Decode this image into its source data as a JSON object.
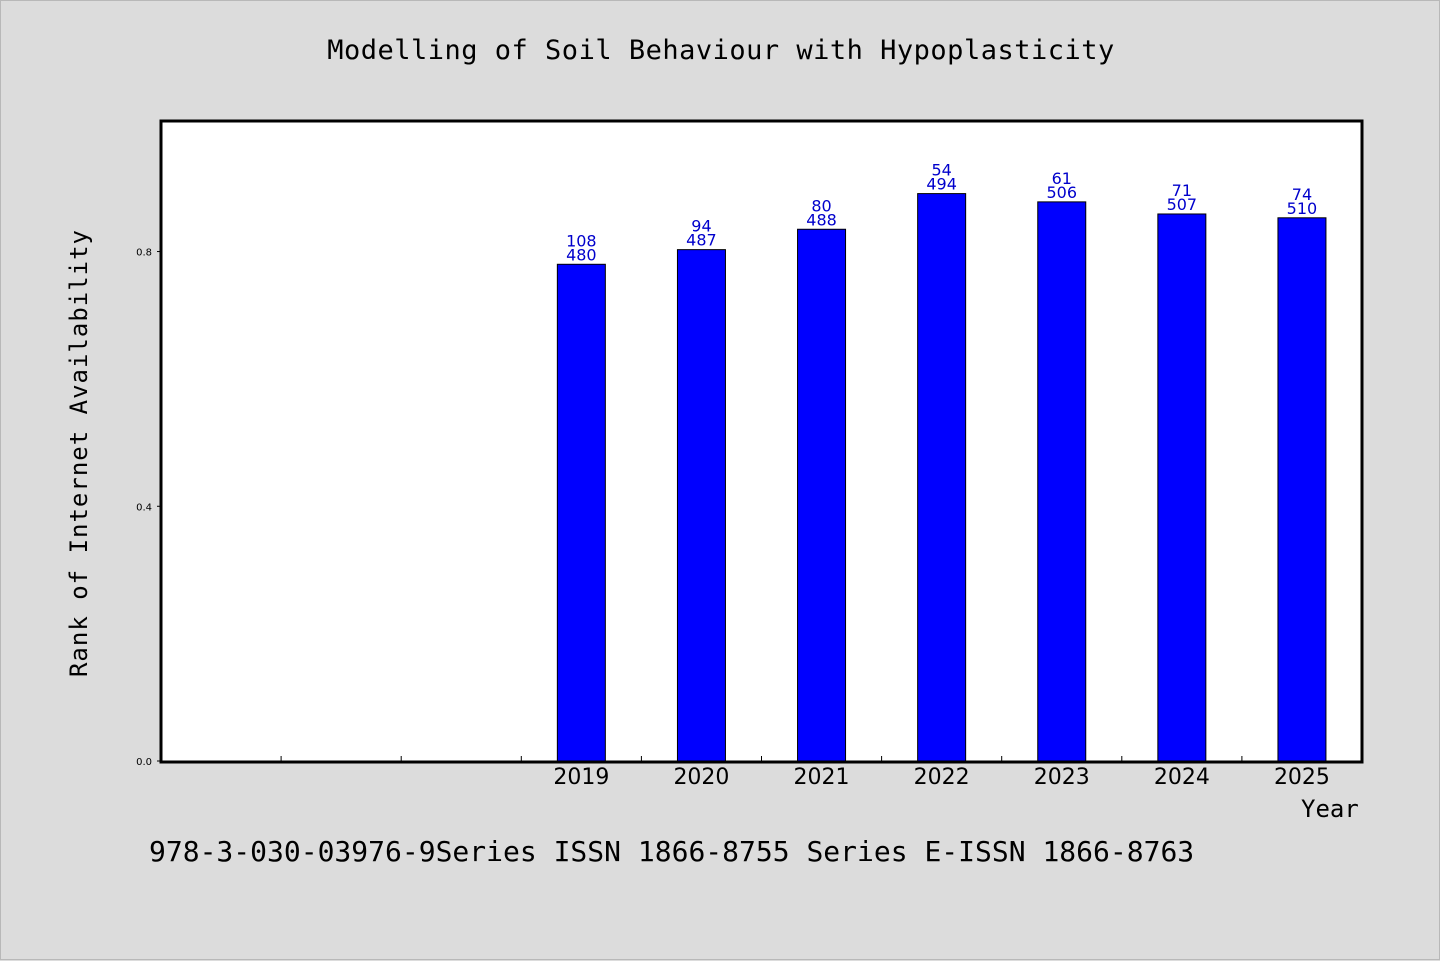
{
  "chart_data": {
    "type": "bar",
    "title": "Modelling of Soil Behaviour with Hypoplasticity",
    "xlabel": "Year",
    "ylabel": "Rank of Internet Availability",
    "categories": [
      "",
      "",
      "",
      "2019",
      "2020",
      "2021",
      "2022",
      "2023",
      "2024",
      "2025"
    ],
    "values": [
      null,
      null,
      null,
      0.78,
      0.803,
      0.835,
      0.891,
      0.878,
      0.859,
      0.853
    ],
    "data_labels": [
      null,
      null,
      null,
      [
        "108",
        "480"
      ],
      [
        "94",
        "487"
      ],
      [
        "80",
        "488"
      ],
      [
        "54",
        "494"
      ],
      [
        "61",
        "506"
      ],
      [
        "71",
        "507"
      ],
      [
        "74",
        "510"
      ]
    ],
    "yticks": [
      0.0,
      0.4,
      0.8
    ],
    "ytick_labels": [
      "0.0",
      "0.4",
      "0.8"
    ],
    "ylim": [
      0,
      1.005
    ],
    "bar_color": "#0000ff",
    "label_color": "#0000cc",
    "plot_background": "#ffffff",
    "page_background": "#dcdcdc",
    "grid": false,
    "legend": "none"
  },
  "footer": {
    "text": "978-3-030-03976-9Series ISSN 1866-8755 Series E-ISSN 1866-8763"
  }
}
